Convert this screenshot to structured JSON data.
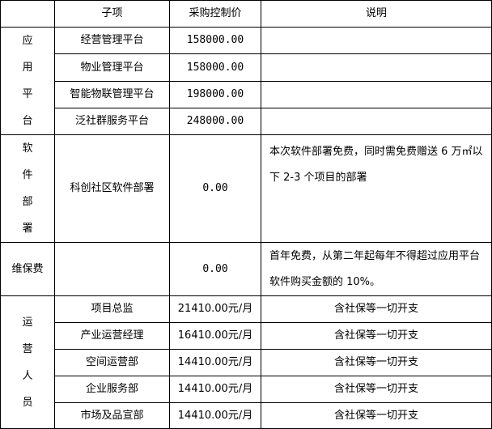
{
  "headers": [
    "",
    "子项",
    "采购控制价",
    "说明"
  ],
  "app_platform": {
    "group": [
      "应",
      "用",
      "平",
      "台"
    ],
    "rows": [
      {
        "item": "经营管理平台",
        "price": "158000.00",
        "note": ""
      },
      {
        "item": "物业管理平台",
        "price": "158000.00",
        "note": ""
      },
      {
        "item": "智能物联管理平台",
        "price": "198000.00",
        "note": ""
      },
      {
        "item": "泛社群服务平台",
        "price": "248000.00",
        "note": ""
      }
    ]
  },
  "software": {
    "group": [
      "软",
      "件",
      "部",
      "署"
    ],
    "item": "科创社区软件部署",
    "price": "0.00",
    "note": "本次软件部署免费，同时需免费赠送 6 万㎡以下 2-3 个项目的部署"
  },
  "maintenance": {
    "group": "维保费",
    "item": "",
    "price": "0.00",
    "note": "首年免费，从第二年起每年不得超过应用平台软件购买金额的 10%。"
  },
  "operations": {
    "group": [
      "运",
      "营",
      "人",
      "员"
    ],
    "rows": [
      {
        "item": "项目总监",
        "price": "21410.00元/月",
        "note": "含社保等一切开支"
      },
      {
        "item": "产业运营经理",
        "price": "16410.00元/月",
        "note": "含社保等一切开支"
      },
      {
        "item": "空间运营部",
        "price": "14410.00元/月",
        "note": "含社保等一切开支"
      },
      {
        "item": "企业服务部",
        "price": "14410.00元/月",
        "note": "含社保等一切开支"
      },
      {
        "item": "市场及品宣部",
        "price": "14410.00元/月",
        "note": "含社保等一切开支"
      }
    ]
  }
}
